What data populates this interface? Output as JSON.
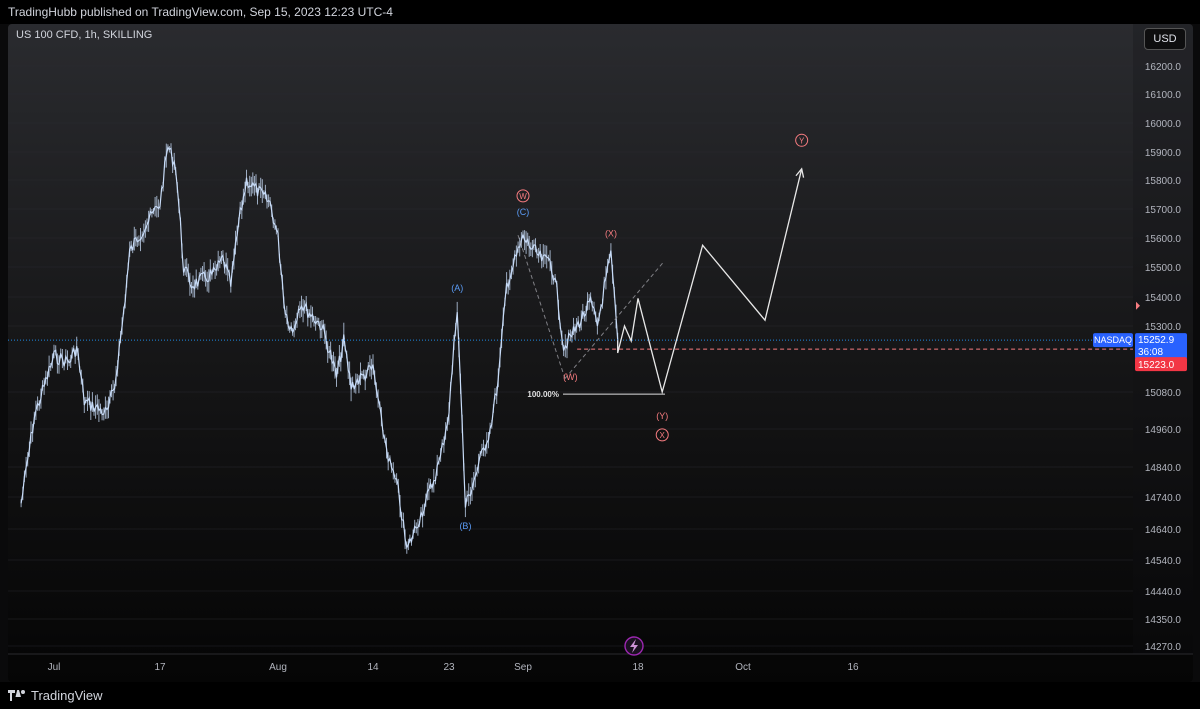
{
  "header": {
    "published": "TradingHubb published on TradingView.com, Sep 15, 2023 12:23 UTC-4"
  },
  "symbol_info": "US 100 CFD, 1h, SKILLING",
  "currency_button": "USD",
  "footer": {
    "brand": "TradingView"
  },
  "colors": {
    "price_line": "#1e88e5",
    "candle": "#c8dcf8",
    "wave_blue": "#5b9cf6",
    "wave_red": "#f77c80",
    "projection": "#e8e8e8",
    "price_label_bg": "#2962ff",
    "alert_bg": "#f23645"
  },
  "chart_data": {
    "type": "line",
    "title": "",
    "ylim": [
      14200,
      16300
    ],
    "y_ticks": [
      16200.0,
      16100.0,
      16000.0,
      15900.0,
      15800.0,
      15700.0,
      15600.0,
      15500.0,
      15400.0,
      15300.0,
      15080.0,
      14960.0,
      14840.0,
      14740.0,
      14640.0,
      14540.0,
      14440.0,
      14350.0,
      14270.0
    ],
    "y_tick_labels": [
      "16200.0",
      "16100.0",
      "16000.0",
      "15900.0",
      "15800.0",
      "15700.0",
      "15600.0",
      "15500.0",
      "15400.0",
      "15300.0",
      "15080.0",
      "14960.0",
      "14840.0",
      "14740.0",
      "14640.0",
      "14540.0",
      "14440.0",
      "14350.0",
      "14270.0"
    ],
    "x_ticks": [
      "Jul",
      "17",
      "Aug",
      "14",
      "23",
      "Sep",
      "18",
      "Oct",
      "16"
    ],
    "price_history": [
      {
        "date": "2023-06-28",
        "price": 14720
      },
      {
        "date": "2023-06-30",
        "price": 15000
      },
      {
        "date": "2023-07-03",
        "price": 15200
      },
      {
        "date": "2023-07-05",
        "price": 15180
      },
      {
        "date": "2023-07-06",
        "price": 15230
      },
      {
        "date": "2023-07-07",
        "price": 15050
      },
      {
        "date": "2023-07-10",
        "price": 15010
      },
      {
        "date": "2023-07-11",
        "price": 15100
      },
      {
        "date": "2023-07-12",
        "price": 15300
      },
      {
        "date": "2023-07-13",
        "price": 15550
      },
      {
        "date": "2023-07-14",
        "price": 15600
      },
      {
        "date": "2023-07-17",
        "price": 15720
      },
      {
        "date": "2023-07-18",
        "price": 15920
      },
      {
        "date": "2023-07-19",
        "price": 15850
      },
      {
        "date": "2023-07-20",
        "price": 15500
      },
      {
        "date": "2023-07-21",
        "price": 15440
      },
      {
        "date": "2023-07-24",
        "price": 15480
      },
      {
        "date": "2023-07-25",
        "price": 15530
      },
      {
        "date": "2023-07-26",
        "price": 15440
      },
      {
        "date": "2023-07-27",
        "price": 15650
      },
      {
        "date": "2023-07-28",
        "price": 15800
      },
      {
        "date": "2023-07-31",
        "price": 15720
      },
      {
        "date": "2023-08-01",
        "price": 15600
      },
      {
        "date": "2023-08-02",
        "price": 15350
      },
      {
        "date": "2023-08-03",
        "price": 15280
      },
      {
        "date": "2023-08-04",
        "price": 15380
      },
      {
        "date": "2023-08-07",
        "price": 15300
      },
      {
        "date": "2023-08-08",
        "price": 15220
      },
      {
        "date": "2023-08-09",
        "price": 15130
      },
      {
        "date": "2023-08-10",
        "price": 15250
      },
      {
        "date": "2023-08-11",
        "price": 15100
      },
      {
        "date": "2023-08-14",
        "price": 15160
      },
      {
        "date": "2023-08-15",
        "price": 14980
      },
      {
        "date": "2023-08-16",
        "price": 14850
      },
      {
        "date": "2023-08-17",
        "price": 14760
      },
      {
        "date": "2023-08-18",
        "price": 14570
      },
      {
        "date": "2023-08-21",
        "price": 14780
      },
      {
        "date": "2023-08-22",
        "price": 14870
      },
      {
        "date": "2023-08-23",
        "price": 15020
      },
      {
        "date": "2023-08-24",
        "price": 15370
      },
      {
        "date": "2023-08-25",
        "price": 14710
      },
      {
        "date": "2023-08-28",
        "price": 14960
      },
      {
        "date": "2023-08-29",
        "price": 15120
      },
      {
        "date": "2023-08-30",
        "price": 15440
      },
      {
        "date": "2023-08-31",
        "price": 15520
      },
      {
        "date": "2023-09-01",
        "price": 15600
      },
      {
        "date": "2023-09-04",
        "price": 15520
      },
      {
        "date": "2023-09-05",
        "price": 15530
      },
      {
        "date": "2023-09-06",
        "price": 15420
      },
      {
        "date": "2023-09-07",
        "price": 15230
      },
      {
        "date": "2023-09-08",
        "price": 15260
      },
      {
        "date": "2023-09-11",
        "price": 15380
      },
      {
        "date": "2023-09-12",
        "price": 15300
      },
      {
        "date": "2023-09-13",
        "price": 15430
      },
      {
        "date": "2023-09-14",
        "price": 15540
      },
      {
        "date": "2023-09-15",
        "price": 15253
      }
    ],
    "projection_path": [
      {
        "date": "2023-09-15",
        "price": 15253
      },
      {
        "date": "2023-09-15",
        "price": 15210
      },
      {
        "date": "2023-09-16",
        "price": 15300
      },
      {
        "date": "2023-09-17",
        "price": 15250
      },
      {
        "date": "2023-09-18",
        "price": 15395
      },
      {
        "date": "2023-09-21",
        "price": 15080
      },
      {
        "date": "2023-09-26",
        "price": 15575
      },
      {
        "date": "2023-10-04",
        "price": 15320
      },
      {
        "date": "2023-10-09",
        "price": 15840
      }
    ],
    "current_price": {
      "label": "NASDAQ",
      "value": "15252.9",
      "countdown": "36:08"
    },
    "alert_price": {
      "value": "15223.0"
    },
    "fib_level": {
      "label": "100.00%",
      "price": 15073
    },
    "wave_labels": [
      {
        "text": "(A)",
        "date": "2023-08-24",
        "price": 15420,
        "color": "blue"
      },
      {
        "text": "(B)",
        "date": "2023-08-25",
        "price": 14640,
        "color": "blue"
      },
      {
        "text": "(C)",
        "date": "2023-09-01",
        "price": 15680,
        "color": "blue"
      },
      {
        "text": "W",
        "date": "2023-09-01",
        "price": 15735,
        "color": "red",
        "circled": true
      },
      {
        "text": "(W)",
        "date": "2023-09-08",
        "price": 15120,
        "color": "red"
      },
      {
        "text": "(X)",
        "date": "2023-09-14",
        "price": 15605,
        "color": "red"
      },
      {
        "text": "(Y)",
        "date": "2023-09-21",
        "price": 14993,
        "color": "red"
      },
      {
        "text": "X",
        "date": "2023-09-21",
        "price": 14932,
        "color": "red",
        "circled": true
      },
      {
        "text": "Y",
        "date": "2023-10-09",
        "price": 15930,
        "color": "red",
        "circled": true
      }
    ]
  }
}
